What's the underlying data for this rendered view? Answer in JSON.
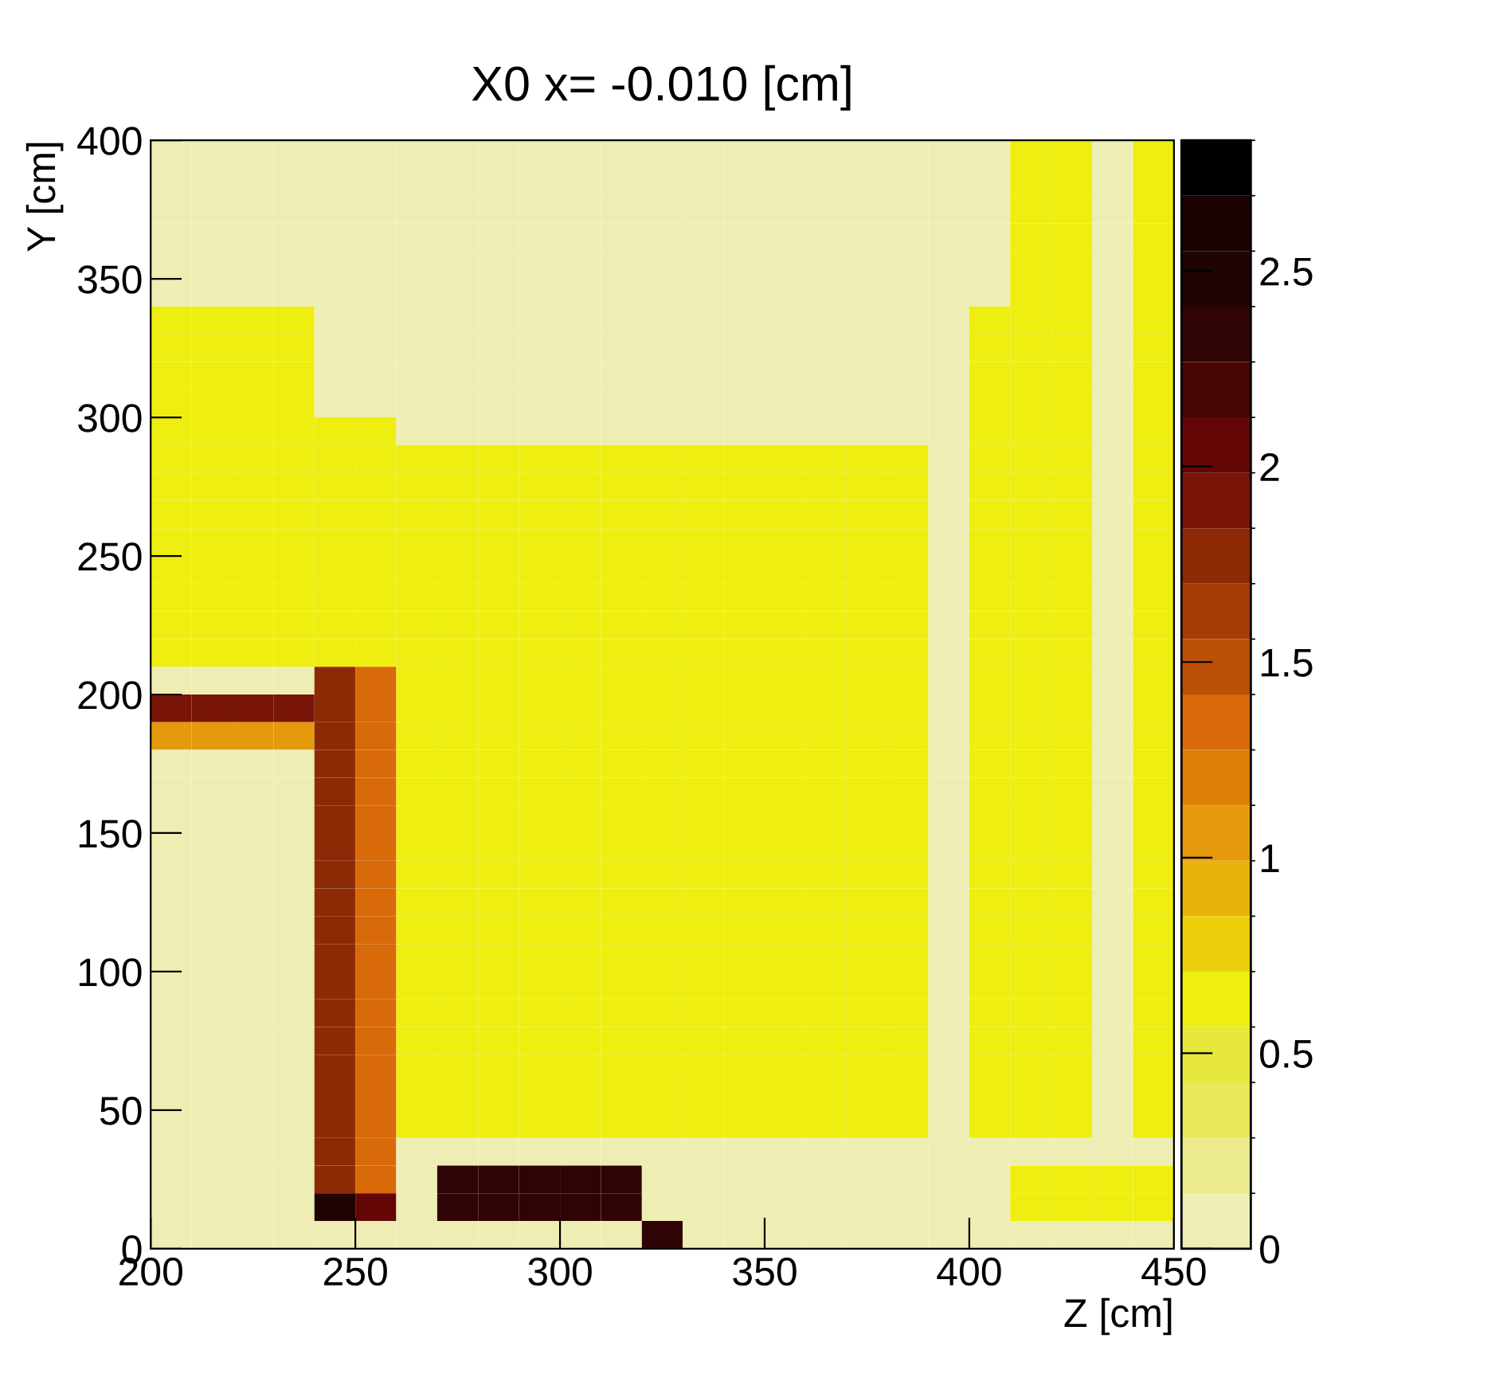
{
  "chart_data": {
    "type": "heatmap",
    "title": "X0 x= -0.010 [cm]",
    "xlabel": "Z [cm]",
    "ylabel": "Y [cm]",
    "cells": [
      [
        0.1,
        0.1,
        0.1,
        0.1,
        0.1,
        0.1,
        0.1,
        0.1,
        0.1,
        0.1,
        0.1,
        0.1,
        0.1,
        0.1,
        0.1,
        0.1,
        0.1,
        0.1,
        0.1,
        0.1,
        0.1,
        0.6,
        0.6,
        0.1,
        0.6
      ],
      [
        0.1,
        0.1,
        0.1,
        0.1,
        0.1,
        0.1,
        0.1,
        0.1,
        0.1,
        0.1,
        0.1,
        0.1,
        0.1,
        0.1,
        0.1,
        0.1,
        0.1,
        0.1,
        0.1,
        0.1,
        0.1,
        0.6,
        0.6,
        0.1,
        0.6
      ],
      [
        0.1,
        0.1,
        0.1,
        0.1,
        0.1,
        0.1,
        0.1,
        0.1,
        0.1,
        0.1,
        0.1,
        0.1,
        0.1,
        0.1,
        0.1,
        0.1,
        0.1,
        0.1,
        0.1,
        0.1,
        0.1,
        0.6,
        0.6,
        0.1,
        0.6
      ],
      [
        0.1,
        0.1,
        0.1,
        0.1,
        0.1,
        0.1,
        0.1,
        0.1,
        0.1,
        0.1,
        0.1,
        0.1,
        0.1,
        0.1,
        0.1,
        0.1,
        0.1,
        0.1,
        0.1,
        0.1,
        0.1,
        0.6,
        0.6,
        0.1,
        0.6
      ],
      [
        0.1,
        0.1,
        0.1,
        0.1,
        0.1,
        0.1,
        0.1,
        0.1,
        0.1,
        0.1,
        0.1,
        0.1,
        0.1,
        0.1,
        0.1,
        0.1,
        0.1,
        0.1,
        0.1,
        0.1,
        0.1,
        0.6,
        0.6,
        0.1,
        0.6
      ],
      [
        0.1,
        0.1,
        0.1,
        0.1,
        0.1,
        0.1,
        0.1,
        0.1,
        0.1,
        0.1,
        0.1,
        0.1,
        0.1,
        0.1,
        0.1,
        0.1,
        0.1,
        0.1,
        0.1,
        0.1,
        0.1,
        0.6,
        0.6,
        0.1,
        0.6
      ],
      [
        0.6,
        0.6,
        0.6,
        0.6,
        0.1,
        0.1,
        0.1,
        0.1,
        0.1,
        0.1,
        0.1,
        0.1,
        0.1,
        0.1,
        0.1,
        0.1,
        0.1,
        0.1,
        0.1,
        0.1,
        0.6,
        0.6,
        0.6,
        0.1,
        0.6
      ],
      [
        0.6,
        0.6,
        0.6,
        0.6,
        0.1,
        0.1,
        0.1,
        0.1,
        0.1,
        0.1,
        0.1,
        0.1,
        0.1,
        0.1,
        0.1,
        0.1,
        0.1,
        0.1,
        0.1,
        0.1,
        0.6,
        0.6,
        0.6,
        0.1,
        0.6
      ],
      [
        0.6,
        0.6,
        0.6,
        0.6,
        0.1,
        0.1,
        0.1,
        0.1,
        0.1,
        0.1,
        0.1,
        0.1,
        0.1,
        0.1,
        0.1,
        0.1,
        0.1,
        0.1,
        0.1,
        0.1,
        0.6,
        0.6,
        0.6,
        0.1,
        0.6
      ],
      [
        0.6,
        0.6,
        0.6,
        0.6,
        0.1,
        0.1,
        0.1,
        0.1,
        0.1,
        0.1,
        0.1,
        0.1,
        0.1,
        0.1,
        0.1,
        0.1,
        0.1,
        0.1,
        0.1,
        0.1,
        0.6,
        0.6,
        0.6,
        0.1,
        0.6
      ],
      [
        0.6,
        0.6,
        0.6,
        0.6,
        0.6,
        0.6,
        0.1,
        0.1,
        0.1,
        0.1,
        0.1,
        0.1,
        0.1,
        0.1,
        0.1,
        0.1,
        0.1,
        0.1,
        0.1,
        0.1,
        0.6,
        0.6,
        0.6,
        0.1,
        0.6
      ],
      [
        0.6,
        0.6,
        0.6,
        0.6,
        0.6,
        0.6,
        0.6,
        0.6,
        0.6,
        0.6,
        0.6,
        0.6,
        0.6,
        0.6,
        0.6,
        0.6,
        0.6,
        0.6,
        0.6,
        0.1,
        0.6,
        0.6,
        0.6,
        0.1,
        0.6
      ],
      [
        0.6,
        0.6,
        0.6,
        0.6,
        0.6,
        0.6,
        0.6,
        0.6,
        0.6,
        0.6,
        0.6,
        0.6,
        0.6,
        0.6,
        0.6,
        0.6,
        0.6,
        0.6,
        0.6,
        0.1,
        0.6,
        0.6,
        0.6,
        0.1,
        0.6
      ],
      [
        0.6,
        0.6,
        0.6,
        0.6,
        0.6,
        0.6,
        0.6,
        0.6,
        0.6,
        0.6,
        0.6,
        0.6,
        0.6,
        0.6,
        0.6,
        0.6,
        0.6,
        0.6,
        0.6,
        0.1,
        0.6,
        0.6,
        0.6,
        0.1,
        0.6
      ],
      [
        0.6,
        0.6,
        0.6,
        0.6,
        0.6,
        0.6,
        0.6,
        0.6,
        0.6,
        0.6,
        0.6,
        0.6,
        0.6,
        0.6,
        0.6,
        0.6,
        0.6,
        0.6,
        0.6,
        0.1,
        0.6,
        0.6,
        0.6,
        0.1,
        0.6
      ],
      [
        0.6,
        0.6,
        0.6,
        0.6,
        0.6,
        0.6,
        0.6,
        0.6,
        0.6,
        0.6,
        0.6,
        0.6,
        0.6,
        0.6,
        0.6,
        0.6,
        0.6,
        0.6,
        0.6,
        0.1,
        0.6,
        0.6,
        0.6,
        0.1,
        0.6
      ],
      [
        0.6,
        0.6,
        0.6,
        0.6,
        0.6,
        0.6,
        0.6,
        0.6,
        0.6,
        0.6,
        0.6,
        0.6,
        0.6,
        0.6,
        0.6,
        0.6,
        0.6,
        0.6,
        0.6,
        0.1,
        0.6,
        0.6,
        0.6,
        0.1,
        0.6
      ],
      [
        0.6,
        0.6,
        0.6,
        0.6,
        0.6,
        0.6,
        0.6,
        0.6,
        0.6,
        0.6,
        0.6,
        0.6,
        0.6,
        0.6,
        0.6,
        0.6,
        0.6,
        0.6,
        0.6,
        0.1,
        0.6,
        0.6,
        0.6,
        0.1,
        0.6
      ],
      [
        0.6,
        0.6,
        0.6,
        0.6,
        0.6,
        0.6,
        0.6,
        0.6,
        0.6,
        0.6,
        0.6,
        0.6,
        0.6,
        0.6,
        0.6,
        0.6,
        0.6,
        0.6,
        0.6,
        0.1,
        0.6,
        0.6,
        0.6,
        0.1,
        0.6
      ],
      [
        0.1,
        0.1,
        0.1,
        0.1,
        1.8,
        1.4,
        0.6,
        0.6,
        0.6,
        0.6,
        0.6,
        0.6,
        0.6,
        0.6,
        0.6,
        0.6,
        0.6,
        0.6,
        0.6,
        0.1,
        0.6,
        0.6,
        0.6,
        0.1,
        0.6
      ],
      [
        1.9,
        1.9,
        1.9,
        1.9,
        1.8,
        1.4,
        0.6,
        0.6,
        0.6,
        0.6,
        0.6,
        0.6,
        0.6,
        0.6,
        0.6,
        0.6,
        0.6,
        0.6,
        0.6,
        0.1,
        0.6,
        0.6,
        0.6,
        0.1,
        0.6
      ],
      [
        1.0,
        1.0,
        1.0,
        1.0,
        1.8,
        1.4,
        0.6,
        0.6,
        0.6,
        0.6,
        0.6,
        0.6,
        0.6,
        0.6,
        0.6,
        0.6,
        0.6,
        0.6,
        0.6,
        0.1,
        0.6,
        0.6,
        0.6,
        0.1,
        0.6
      ],
      [
        0.1,
        0.1,
        0.1,
        0.1,
        1.8,
        1.4,
        0.6,
        0.6,
        0.6,
        0.6,
        0.6,
        0.6,
        0.6,
        0.6,
        0.6,
        0.6,
        0.6,
        0.6,
        0.6,
        0.1,
        0.6,
        0.6,
        0.6,
        0.1,
        0.6
      ],
      [
        0.1,
        0.1,
        0.1,
        0.1,
        1.8,
        1.4,
        0.6,
        0.6,
        0.6,
        0.6,
        0.6,
        0.6,
        0.6,
        0.6,
        0.6,
        0.6,
        0.6,
        0.6,
        0.6,
        0.1,
        0.6,
        0.6,
        0.6,
        0.1,
        0.6
      ],
      [
        0.1,
        0.1,
        0.1,
        0.1,
        1.8,
        1.4,
        0.6,
        0.6,
        0.6,
        0.6,
        0.6,
        0.6,
        0.6,
        0.6,
        0.6,
        0.6,
        0.6,
        0.6,
        0.6,
        0.1,
        0.6,
        0.6,
        0.6,
        0.1,
        0.6
      ],
      [
        0.1,
        0.1,
        0.1,
        0.1,
        1.8,
        1.4,
        0.6,
        0.6,
        0.6,
        0.6,
        0.6,
        0.6,
        0.6,
        0.6,
        0.6,
        0.6,
        0.6,
        0.6,
        0.6,
        0.1,
        0.6,
        0.6,
        0.6,
        0.1,
        0.6
      ],
      [
        0.1,
        0.1,
        0.1,
        0.1,
        1.8,
        1.4,
        0.6,
        0.6,
        0.6,
        0.6,
        0.6,
        0.6,
        0.6,
        0.6,
        0.6,
        0.6,
        0.6,
        0.6,
        0.6,
        0.1,
        0.6,
        0.6,
        0.6,
        0.1,
        0.6
      ],
      [
        0.1,
        0.1,
        0.1,
        0.1,
        1.8,
        1.4,
        0.6,
        0.6,
        0.6,
        0.6,
        0.6,
        0.6,
        0.6,
        0.6,
        0.6,
        0.6,
        0.6,
        0.6,
        0.6,
        0.1,
        0.6,
        0.6,
        0.6,
        0.1,
        0.6
      ],
      [
        0.1,
        0.1,
        0.1,
        0.1,
        1.8,
        1.4,
        0.6,
        0.6,
        0.6,
        0.6,
        0.6,
        0.6,
        0.6,
        0.6,
        0.6,
        0.6,
        0.6,
        0.6,
        0.6,
        0.1,
        0.6,
        0.6,
        0.6,
        0.1,
        0.6
      ],
      [
        0.1,
        0.1,
        0.1,
        0.1,
        1.8,
        1.4,
        0.6,
        0.6,
        0.6,
        0.6,
        0.6,
        0.6,
        0.6,
        0.6,
        0.6,
        0.6,
        0.6,
        0.6,
        0.6,
        0.1,
        0.6,
        0.6,
        0.6,
        0.1,
        0.6
      ],
      [
        0.1,
        0.1,
        0.1,
        0.1,
        1.8,
        1.4,
        0.6,
        0.6,
        0.6,
        0.6,
        0.6,
        0.6,
        0.6,
        0.6,
        0.6,
        0.6,
        0.6,
        0.6,
        0.6,
        0.1,
        0.6,
        0.6,
        0.6,
        0.1,
        0.6
      ],
      [
        0.1,
        0.1,
        0.1,
        0.1,
        1.8,
        1.4,
        0.6,
        0.6,
        0.6,
        0.6,
        0.6,
        0.6,
        0.6,
        0.6,
        0.6,
        0.6,
        0.6,
        0.6,
        0.6,
        0.1,
        0.6,
        0.6,
        0.6,
        0.1,
        0.6
      ],
      [
        0.1,
        0.1,
        0.1,
        0.1,
        1.8,
        1.4,
        0.6,
        0.6,
        0.6,
        0.6,
        0.6,
        0.6,
        0.6,
        0.6,
        0.6,
        0.6,
        0.6,
        0.6,
        0.6,
        0.1,
        0.6,
        0.6,
        0.6,
        0.1,
        0.6
      ],
      [
        0.1,
        0.1,
        0.1,
        0.1,
        1.8,
        1.4,
        0.6,
        0.6,
        0.6,
        0.6,
        0.6,
        0.6,
        0.6,
        0.6,
        0.6,
        0.6,
        0.6,
        0.6,
        0.6,
        0.1,
        0.6,
        0.6,
        0.6,
        0.1,
        0.6
      ],
      [
        0.1,
        0.1,
        0.1,
        0.1,
        1.8,
        1.4,
        0.6,
        0.6,
        0.6,
        0.6,
        0.6,
        0.6,
        0.6,
        0.6,
        0.6,
        0.6,
        0.6,
        0.6,
        0.6,
        0.1,
        0.6,
        0.6,
        0.6,
        0.1,
        0.6
      ],
      [
        0.1,
        0.1,
        0.1,
        0.1,
        1.8,
        1.4,
        0.6,
        0.6,
        0.6,
        0.6,
        0.6,
        0.6,
        0.6,
        0.6,
        0.6,
        0.6,
        0.6,
        0.6,
        0.6,
        0.1,
        0.6,
        0.6,
        0.6,
        0.1,
        0.6
      ],
      [
        0.1,
        0.1,
        0.1,
        0.1,
        1.8,
        1.4,
        0.1,
        0.1,
        0.1,
        0.1,
        0.1,
        0.1,
        0.1,
        0.1,
        0.1,
        0.1,
        0.1,
        0.1,
        0.1,
        0.1,
        0.1,
        0.1,
        0.1,
        0.1,
        0.1
      ],
      [
        0.1,
        0.1,
        0.1,
        0.1,
        1.8,
        1.4,
        0.1,
        2.3,
        2.3,
        2.3,
        2.3,
        2.3,
        0.1,
        0.1,
        0.1,
        0.1,
        0.1,
        0.1,
        0.1,
        0.1,
        0.1,
        0.6,
        0.6,
        0.6,
        0.6
      ],
      [
        0.1,
        0.1,
        0.1,
        0.1,
        2.5,
        2.0,
        0.1,
        2.3,
        2.3,
        2.3,
        2.3,
        2.3,
        0.1,
        0.1,
        0.1,
        0.1,
        0.1,
        0.1,
        0.1,
        0.1,
        0.1,
        0.6,
        0.6,
        0.6,
        0.6
      ],
      [
        0.1,
        0.1,
        0.1,
        0.1,
        0.1,
        0.1,
        0.1,
        0.1,
        0.1,
        0.1,
        0.1,
        0.1,
        2.4,
        0.1,
        0.1,
        0.1,
        0.1,
        0.1,
        0.1,
        0.1,
        0.1,
        0.1,
        0.1,
        0.1,
        0.1
      ]
    ],
    "xlim": [
      200,
      450
    ],
    "xticks": [
      200,
      250,
      300,
      350,
      400,
      450
    ],
    "ylim": [
      0,
      400
    ],
    "yticks": [
      0,
      50,
      100,
      150,
      200,
      250,
      300,
      350,
      400
    ],
    "clim": [
      0,
      2.834
    ],
    "cticks": [
      0,
      0.5,
      1,
      1.5,
      2,
      2.5
    ]
  }
}
